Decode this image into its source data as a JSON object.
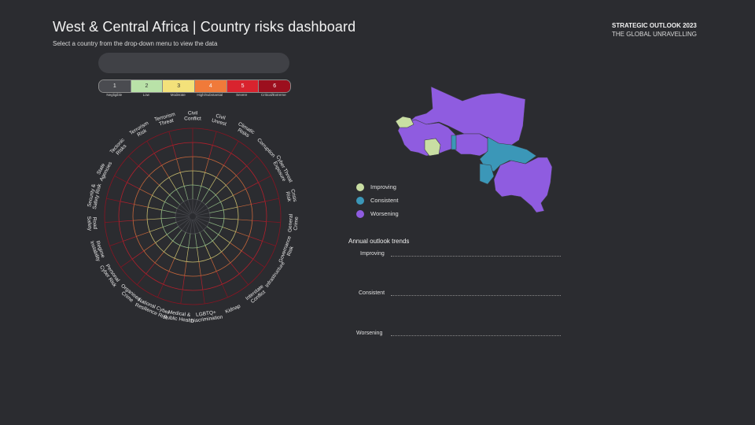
{
  "header": {
    "title": "West & Central Africa | Country risks dashboard",
    "subtitle": "Select a country from the drop-down menu to view the data"
  },
  "brand": {
    "line1": "STRATEGIC OUTLOOK 2023",
    "line2": "THE GLOBAL UNRAVELLING"
  },
  "country_select": {
    "value": ""
  },
  "scale": [
    {
      "value": "1",
      "label": "Negligible",
      "color": "#4a4b50",
      "text_color": "#e8e8e8"
    },
    {
      "value": "2",
      "label": "Low",
      "color": "#b9e2a8",
      "text_color": "#333333"
    },
    {
      "value": "3",
      "label": "Moderate",
      "color": "#f3e17a",
      "text_color": "#333333"
    },
    {
      "value": "4",
      "label": "High/Substantial",
      "color": "#f07a3a",
      "text_color": "#f5f5f5"
    },
    {
      "value": "5",
      "label": "Severe",
      "color": "#d9232e",
      "text_color": "#f5f5f5"
    },
    {
      "value": "6",
      "label": "Critical/Extreme",
      "color": "#9c0f1e",
      "text_color": "#f5f5f5"
    }
  ],
  "radar": {
    "axes": [
      [
        "Civil",
        "Conflict"
      ],
      [
        "Civil",
        "Unrest"
      ],
      [
        "Climatic",
        "Risks"
      ],
      [
        "Corruption"
      ],
      [
        "Cyber Threat",
        "Exposure"
      ],
      [
        "Crisis",
        "Risk"
      ],
      [
        "General",
        "Crime"
      ],
      [
        "Governance",
        "Risk"
      ],
      [
        "Infrastructure"
      ],
      [
        "Interstate",
        "Conflict"
      ],
      [
        "Kidnap"
      ],
      [
        "LGBTQ+",
        "Discrimination"
      ],
      [
        "Medical &",
        "Public Health"
      ],
      [
        "National Cyber",
        "Resilience Risk"
      ],
      [
        "Organised",
        "Crime"
      ],
      [
        "Personal",
        "Cyber Risk"
      ],
      [
        "Regime",
        "Instability"
      ],
      [
        "Road",
        "Safety"
      ],
      [
        "Security &",
        "Safety Risk"
      ],
      [
        "State",
        "Agencies"
      ],
      [
        "Tectonic",
        "Risks"
      ],
      [
        "Terrorism",
        "Risk"
      ],
      [
        "Terrorism",
        "Threat"
      ]
    ],
    "ring_colors": [
      "#4a4b50",
      "#8fb884",
      "#c8bd6e",
      "#c8673a",
      "#b3202c",
      "#8a1422"
    ]
  },
  "legend": [
    {
      "label": "Improving",
      "color": "#c9dea3"
    },
    {
      "label": "Consistent",
      "color": "#3b97b8"
    },
    {
      "label": "Worsening",
      "color": "#8f5ce0"
    }
  ],
  "trends": {
    "title": "Annual outlook trends",
    "rows": [
      "Improving",
      "Consistent",
      "Worsening"
    ]
  }
}
